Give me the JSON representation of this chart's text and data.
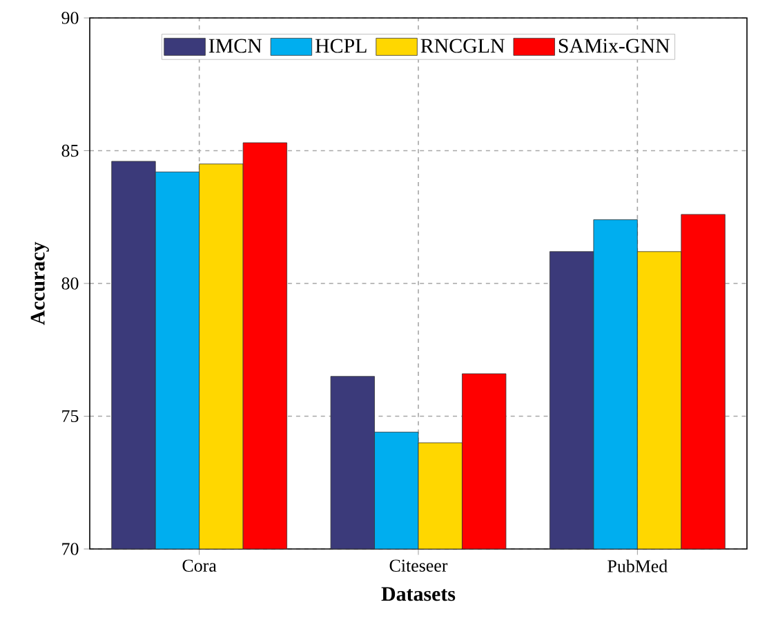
{
  "chart_data": {
    "type": "bar",
    "xlabel": "Datasets",
    "ylabel": "Accuracy",
    "categories": [
      "Cora",
      "Citeseer",
      "PubMed"
    ],
    "series": [
      {
        "name": "IMCN",
        "color": "#3b3a7a",
        "values": [
          84.6,
          76.5,
          81.2
        ]
      },
      {
        "name": "HCPL",
        "color": "#00aeef",
        "values": [
          84.2,
          74.4,
          82.4
        ]
      },
      {
        "name": "RNCGLN",
        "color": "#ffd700",
        "values": [
          84.5,
          74.0,
          81.2
        ]
      },
      {
        "name": "SAMix-GNN",
        "color": "#ff0000",
        "values": [
          85.3,
          76.6,
          82.6
        ]
      }
    ],
    "ylim": [
      70,
      90
    ],
    "yticks": [
      70,
      75,
      80,
      85,
      90
    ],
    "grid": true,
    "legend": "top"
  }
}
